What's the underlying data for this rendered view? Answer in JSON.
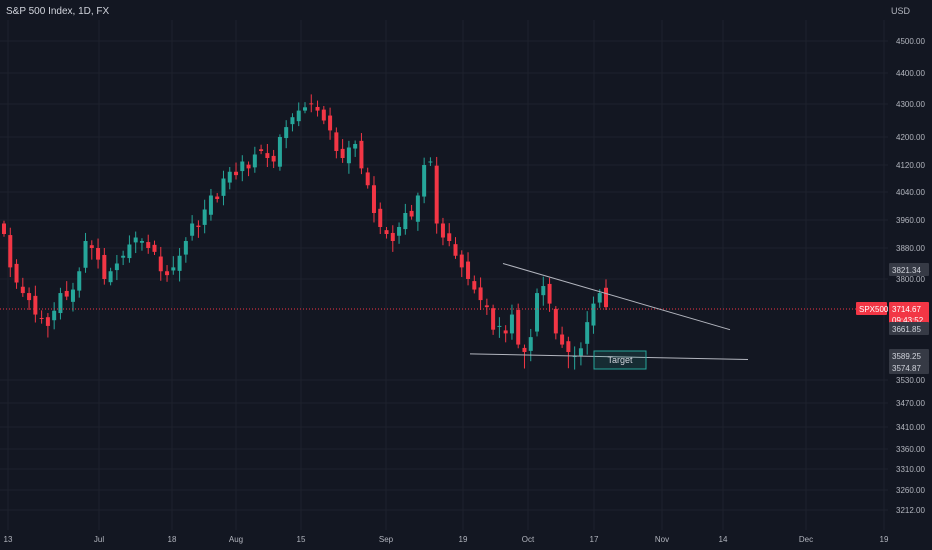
{
  "header": {
    "title": "S&P 500 Index, 1D, FX",
    "currency": "USD"
  },
  "price_labels": {
    "resistance": "3821.34",
    "current": "3714.67",
    "countdown": "09:43:52",
    "symbol": "SPX500",
    "level_a": "3661.85",
    "level_b": "3589.25",
    "level_c": "3574.87"
  },
  "annotation": {
    "target": "Target"
  },
  "colors": {
    "up": "#26a69a",
    "down": "#f23645",
    "background": "#131722",
    "grid": "#1e222d",
    "text": "#b2b5be",
    "trendline": "#b2b5be"
  },
  "chart_data": {
    "type": "candlestick",
    "title": "S&P 500 Index, 1D, FX",
    "ylabel": "USD",
    "yticks": [
      4500,
      4400,
      4300,
      4200,
      4120,
      4040,
      3960,
      3880,
      3800,
      3714.67,
      3661.85,
      3589.25,
      3574.87,
      3530,
      3470,
      3410,
      3360,
      3310,
      3260,
      3212
    ],
    "xticks": [
      "13",
      "Jul",
      "18",
      "Aug",
      "15",
      "Sep",
      "19",
      "Oct",
      "17",
      "Nov",
      "14",
      "Dec",
      "19"
    ],
    "ylim": [
      3190,
      4560
    ],
    "current_price": 3714.67,
    "trendlines": [
      {
        "name": "upper",
        "start": 3840,
        "end": 3660
      },
      {
        "name": "lower",
        "start": 3595,
        "end": 3585
      }
    ],
    "closes": [
      3920,
      3830,
      3790,
      3760,
      3740,
      3700,
      3690,
      3670,
      3710,
      3760,
      3750,
      3770,
      3820,
      3900,
      3880,
      3850,
      3800,
      3820,
      3840,
      3860,
      3890,
      3910,
      3900,
      3880,
      3870,
      3820,
      3810,
      3830,
      3860,
      3900,
      3950,
      3940,
      3990,
      4030,
      4020,
      4080,
      4100,
      4090,
      4130,
      4110,
      4150,
      4160,
      4140,
      4130,
      4200,
      4230,
      4260,
      4280,
      4290,
      4300,
      4280,
      4250,
      4220,
      4160,
      4140,
      4170,
      4180,
      4110,
      4060,
      3980,
      3940,
      3920,
      3900,
      3940,
      3980,
      3970,
      4030,
      4120,
      4130,
      3950,
      3910,
      3900,
      3860,
      3830,
      3800,
      3770,
      3740,
      3720,
      3660,
      3670,
      3650,
      3700,
      3620,
      3600,
      3640,
      3760,
      3780,
      3730,
      3650,
      3620,
      3600,
      3590,
      3610,
      3680,
      3730,
      3760,
      3720
    ]
  }
}
